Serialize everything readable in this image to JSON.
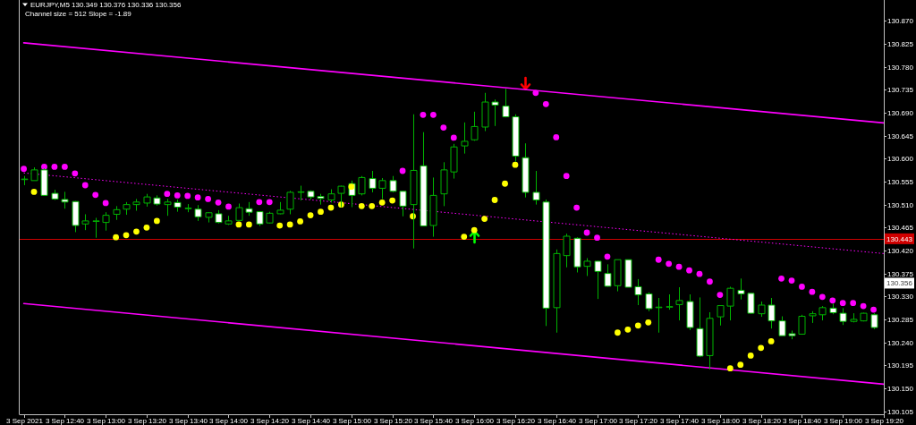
{
  "chart_data": {
    "type": "candlestick",
    "title": "EURJPY,M5 130.349 130.376 130.336 130.356",
    "subtitle": "Channel size = 512 Slope = -1.89",
    "x": [
      "2021-09-03T12:20",
      "2021-09-03T12:25",
      "2021-09-03T12:30",
      "2021-09-03T12:35",
      "2021-09-03T12:40",
      "2021-09-03T12:45",
      "2021-09-03T12:50",
      "2021-09-03T12:55",
      "2021-09-03T13:00",
      "2021-09-03T13:05",
      "2021-09-03T13:10",
      "2021-09-03T13:15",
      "2021-09-03T13:20",
      "2021-09-03T13:25",
      "2021-09-03T13:30",
      "2021-09-03T13:35",
      "2021-09-03T13:40",
      "2021-09-03T13:45",
      "2021-09-03T13:50",
      "2021-09-03T13:55",
      "2021-09-03T14:00",
      "2021-09-03T14:05",
      "2021-09-03T14:10",
      "2021-09-03T14:15",
      "2021-09-03T14:20",
      "2021-09-03T14:25",
      "2021-09-03T14:30",
      "2021-09-03T14:35",
      "2021-09-03T14:40",
      "2021-09-03T14:45",
      "2021-09-03T14:50",
      "2021-09-03T14:55",
      "2021-09-03T15:00",
      "2021-09-03T15:05",
      "2021-09-03T15:10",
      "2021-09-03T15:15",
      "2021-09-03T15:20",
      "2021-09-03T15:25",
      "2021-09-03T15:30",
      "2021-09-03T15:35",
      "2021-09-03T15:40",
      "2021-09-03T15:45",
      "2021-09-03T15:50",
      "2021-09-03T15:55",
      "2021-09-03T16:00",
      "2021-09-03T16:05",
      "2021-09-03T16:10",
      "2021-09-03T16:15",
      "2021-09-03T16:20",
      "2021-09-03T16:25",
      "2021-09-03T16:30",
      "2021-09-03T16:35",
      "2021-09-03T16:40",
      "2021-09-03T16:45",
      "2021-09-03T16:50",
      "2021-09-03T16:55",
      "2021-09-03T17:00",
      "2021-09-03T17:05",
      "2021-09-03T17:10",
      "2021-09-03T17:15",
      "2021-09-03T17:20",
      "2021-09-03T17:25",
      "2021-09-03T17:30",
      "2021-09-03T17:35",
      "2021-09-03T17:40",
      "2021-09-03T17:45",
      "2021-09-03T17:50",
      "2021-09-03T17:55",
      "2021-09-03T18:00",
      "2021-09-03T18:05",
      "2021-09-03T18:10",
      "2021-09-03T18:15",
      "2021-09-03T18:20",
      "2021-09-03T18:25",
      "2021-09-03T18:30",
      "2021-09-03T18:35",
      "2021-09-03T18:40",
      "2021-09-03T18:45",
      "2021-09-03T18:50",
      "2021-09-03T18:55",
      "2021-09-03T19:00",
      "2021-09-03T19:05",
      "2021-09-03T19:10",
      "2021-09-03T19:15"
    ],
    "ohlc": [
      [
        130.559,
        130.566,
        130.548,
        130.56
      ],
      [
        130.557,
        130.583,
        130.557,
        130.578
      ],
      [
        130.578,
        130.581,
        130.527,
        130.528
      ],
      [
        130.532,
        130.539,
        130.519,
        130.521
      ],
      [
        130.52,
        130.535,
        130.502,
        130.515
      ],
      [
        130.516,
        130.517,
        130.456,
        130.469
      ],
      [
        130.472,
        130.491,
        130.46,
        130.478
      ],
      [
        130.477,
        130.484,
        130.445,
        130.478
      ],
      [
        130.475,
        130.495,
        130.459,
        130.489
      ],
      [
        130.491,
        130.507,
        130.48,
        130.5
      ],
      [
        130.501,
        130.515,
        130.49,
        130.51
      ],
      [
        130.51,
        130.521,
        130.498,
        130.515
      ],
      [
        130.513,
        130.531,
        130.506,
        130.525
      ],
      [
        130.523,
        130.528,
        130.508,
        130.511
      ],
      [
        130.51,
        130.521,
        130.488,
        130.515
      ],
      [
        130.514,
        130.52,
        130.496,
        130.505
      ],
      [
        130.502,
        130.511,
        130.495,
        130.503
      ],
      [
        130.501,
        130.509,
        130.478,
        130.486
      ],
      [
        130.485,
        130.495,
        130.475,
        130.494
      ],
      [
        130.492,
        130.499,
        130.473,
        130.475
      ],
      [
        130.472,
        130.488,
        130.47,
        130.478
      ],
      [
        130.479,
        130.512,
        130.478,
        130.504
      ],
      [
        130.502,
        130.515,
        130.488,
        130.495
      ],
      [
        130.496,
        130.497,
        130.468,
        130.472
      ],
      [
        130.474,
        130.496,
        130.473,
        130.493
      ],
      [
        130.492,
        130.515,
        130.491,
        130.499
      ],
      [
        130.501,
        130.537,
        130.491,
        130.534
      ],
      [
        130.534,
        130.547,
        130.518,
        130.535
      ],
      [
        130.536,
        130.538,
        130.52,
        130.525
      ],
      [
        130.526,
        130.531,
        130.51,
        130.522
      ],
      [
        130.519,
        130.54,
        130.514,
        130.531
      ],
      [
        130.532,
        130.547,
        130.505,
        130.546
      ],
      [
        130.551,
        130.557,
        130.505,
        130.528
      ],
      [
        130.531,
        130.566,
        130.528,
        130.563
      ],
      [
        130.561,
        130.576,
        130.534,
        130.542
      ],
      [
        130.542,
        130.562,
        130.521,
        130.557
      ],
      [
        130.557,
        130.566,
        130.534,
        130.536
      ],
      [
        130.536,
        130.537,
        130.487,
        130.507
      ],
      [
        130.51,
        130.687,
        130.424,
        130.577
      ],
      [
        130.586,
        130.652,
        130.468,
        130.468
      ],
      [
        130.469,
        130.563,
        130.447,
        130.528
      ],
      [
        130.531,
        130.593,
        130.507,
        130.578
      ],
      [
        130.574,
        130.629,
        130.561,
        130.623
      ],
      [
        130.625,
        130.671,
        130.61,
        130.634
      ],
      [
        130.637,
        130.692,
        130.635,
        130.663
      ],
      [
        130.662,
        130.729,
        130.654,
        130.711
      ],
      [
        130.711,
        130.716,
        130.664,
        130.705
      ],
      [
        130.703,
        130.737,
        130.681,
        130.682
      ],
      [
        130.682,
        130.687,
        130.594,
        130.605
      ],
      [
        130.602,
        130.63,
        130.524,
        130.534
      ],
      [
        130.534,
        130.576,
        130.51,
        130.519
      ],
      [
        130.515,
        130.52,
        130.272,
        130.307
      ],
      [
        130.308,
        130.422,
        130.259,
        130.414
      ],
      [
        130.41,
        130.453,
        130.387,
        130.448
      ],
      [
        130.444,
        130.446,
        130.377,
        130.388
      ],
      [
        130.389,
        130.405,
        130.37,
        130.399
      ],
      [
        130.399,
        130.4,
        130.325,
        130.379
      ],
      [
        130.375,
        130.393,
        130.349,
        130.35
      ],
      [
        130.351,
        130.402,
        130.34,
        130.402
      ],
      [
        130.402,
        130.402,
        130.348,
        130.348
      ],
      [
        130.349,
        130.364,
        130.313,
        130.333
      ],
      [
        130.335,
        130.338,
        130.301,
        130.306
      ],
      [
        130.308,
        130.327,
        130.259,
        130.309
      ],
      [
        130.309,
        130.334,
        130.304,
        130.31
      ],
      [
        130.314,
        130.348,
        130.283,
        130.322
      ],
      [
        130.32,
        130.334,
        130.264,
        130.269
      ],
      [
        130.267,
        130.328,
        130.211,
        130.213
      ],
      [
        130.214,
        130.299,
        130.187,
        130.287
      ],
      [
        130.29,
        130.312,
        130.273,
        130.312
      ],
      [
        130.311,
        130.349,
        130.283,
        130.346
      ],
      [
        130.342,
        130.365,
        130.324,
        130.335
      ],
      [
        130.336,
        130.337,
        130.296,
        130.297
      ],
      [
        130.296,
        130.32,
        130.29,
        130.313
      ],
      [
        130.313,
        130.327,
        130.267,
        130.282
      ],
      [
        130.282,
        130.291,
        130.253,
        130.253
      ],
      [
        130.257,
        130.263,
        130.246,
        130.253
      ],
      [
        130.256,
        130.294,
        130.255,
        130.291
      ],
      [
        130.292,
        130.301,
        130.278,
        130.296
      ],
      [
        130.294,
        130.311,
        130.283,
        130.308
      ],
      [
        130.307,
        130.316,
        130.295,
        130.298
      ],
      [
        130.297,
        130.307,
        130.274,
        130.281
      ],
      [
        130.281,
        130.297,
        130.279,
        130.285
      ],
      [
        130.282,
        130.298,
        130.281,
        130.297
      ],
      [
        130.294,
        130.297,
        130.266,
        130.269
      ]
    ],
    "color": "#00b400",
    "colors": [
      "#000000",
      "#000000",
      "#ffffff",
      "#ffffff",
      "#ffffff",
      "#ffffff",
      "#000000",
      "#000000",
      "#000000",
      "#000000",
      "#000000",
      "#000000",
      "#000000",
      "#ffffff",
      "#000000",
      "#ffffff",
      "#000000",
      "#ffffff",
      "#000000",
      "#ffffff",
      "#000000",
      "#000000",
      "#ffffff",
      "#ffffff",
      "#000000",
      "#000000",
      "#000000",
      "#000000",
      "#ffffff",
      "#ffffff",
      "#000000",
      "#000000",
      "#ffffff",
      "#000000",
      "#ffffff",
      "#000000",
      "#ffffff",
      "#ffffff",
      "#000000",
      "#ffffff",
      "#000000",
      "#000000",
      "#000000",
      "#000000",
      "#000000",
      "#000000",
      "#ffffff",
      "#ffffff",
      "#ffffff",
      "#ffffff",
      "#ffffff",
      "#ffffff",
      "#000000",
      "#000000",
      "#ffffff",
      "#000000",
      "#ffffff",
      "#ffffff",
      "#000000",
      "#ffffff",
      "#ffffff",
      "#ffffff",
      "#000000",
      "#000000",
      "#000000",
      "#ffffff",
      "#ffffff",
      "#000000",
      "#000000",
      "#000000",
      "#ffffff",
      "#ffffff",
      "#000000",
      "#ffffff",
      "#ffffff",
      "#ffffff",
      "#000000",
      "#000000",
      "#000000",
      "#ffffff",
      "#ffffff",
      "#000000",
      "#000000",
      "#ffffff"
    ],
    "series": [
      {
        "type": "line",
        "color": "#ff00ff",
        "line_style": "solid",
        "x": [
          "2021-09-03T12:20",
          "2021-09-03T19:20"
        ],
        "values": [
          130.827,
          130.67
        ]
      },
      {
        "type": "line",
        "color": "#ff00ff",
        "line_style": "dotted",
        "x": [
          "2021-09-03T12:20",
          "2021-09-03T19:20"
        ],
        "values": [
          130.572,
          130.414
        ]
      },
      {
        "type": "line",
        "color": "#ff00ff",
        "line_style": "solid",
        "x": [
          "2021-09-03T12:20",
          "2021-09-03T19:20"
        ],
        "values": [
          130.316,
          130.158
        ]
      },
      {
        "type": "scatter",
        "color": "#ff00ff",
        "marker": "circle",
        "x": [
          "2021-09-03T12:20",
          "2021-09-03T12:30",
          "2021-09-03T12:35",
          "2021-09-03T12:40",
          "2021-09-03T12:45",
          "2021-09-03T12:50",
          "2021-09-03T12:55",
          "2021-09-03T13:00",
          "2021-09-03T13:30",
          "2021-09-03T13:35",
          "2021-09-03T13:40",
          "2021-09-03T13:45",
          "2021-09-03T13:50",
          "2021-09-03T13:55",
          "2021-09-03T14:00",
          "2021-09-03T14:15",
          "2021-09-03T14:20",
          "2021-09-03T15:25",
          "2021-09-03T15:35",
          "2021-09-03T15:40",
          "2021-09-03T15:45",
          "2021-09-03T15:50",
          "2021-09-03T16:30",
          "2021-09-03T16:35",
          "2021-09-03T16:40",
          "2021-09-03T16:45",
          "2021-09-03T16:50",
          "2021-09-03T16:55",
          "2021-09-03T17:00",
          "2021-09-03T17:05",
          "2021-09-03T17:30",
          "2021-09-03T17:35",
          "2021-09-03T17:40",
          "2021-09-03T17:45",
          "2021-09-03T17:50",
          "2021-09-03T17:55",
          "2021-09-03T18:00",
          "2021-09-03T18:30",
          "2021-09-03T18:35",
          "2021-09-03T18:40",
          "2021-09-03T18:45",
          "2021-09-03T18:50",
          "2021-09-03T18:55",
          "2021-09-03T19:00",
          "2021-09-03T19:05",
          "2021-09-03T19:10",
          "2021-09-03T19:15"
        ],
        "values": [
          130.58,
          130.584,
          130.584,
          130.584,
          130.571,
          130.548,
          130.529,
          130.513,
          130.531,
          130.528,
          130.527,
          130.524,
          130.521,
          130.514,
          130.506,
          130.515,
          130.515,
          130.576,
          130.686,
          130.686,
          130.661,
          130.641,
          130.729,
          130.707,
          130.642,
          130.566,
          130.504,
          130.455,
          130.445,
          130.408,
          130.402,
          130.394,
          130.388,
          130.381,
          130.374,
          130.359,
          130.333,
          130.365,
          130.361,
          130.349,
          130.339,
          130.329,
          130.322,
          130.317,
          130.317,
          130.311,
          130.304
        ]
      },
      {
        "type": "scatter",
        "color": "#ffff00",
        "marker": "circle",
        "x": [
          "2021-09-03T12:25",
          "2021-09-03T13:05",
          "2021-09-03T13:10",
          "2021-09-03T13:15",
          "2021-09-03T13:20",
          "2021-09-03T13:25",
          "2021-09-03T14:05",
          "2021-09-03T14:10",
          "2021-09-03T14:25",
          "2021-09-03T14:30",
          "2021-09-03T14:35",
          "2021-09-03T14:40",
          "2021-09-03T14:45",
          "2021-09-03T14:50",
          "2021-09-03T14:55",
          "2021-09-03T15:00",
          "2021-09-03T15:05",
          "2021-09-03T15:10",
          "2021-09-03T15:15",
          "2021-09-03T15:20",
          "2021-09-03T15:30",
          "2021-09-03T15:55",
          "2021-09-03T16:00",
          "2021-09-03T16:05",
          "2021-09-03T16:10",
          "2021-09-03T16:15",
          "2021-09-03T16:20",
          "2021-09-03T17:10",
          "2021-09-03T17:15",
          "2021-09-03T17:20",
          "2021-09-03T17:25",
          "2021-09-03T18:05",
          "2021-09-03T18:10",
          "2021-09-03T18:15",
          "2021-09-03T18:20",
          "2021-09-03T18:25"
        ],
        "values": [
          130.535,
          130.446,
          130.45,
          130.457,
          130.465,
          130.478,
          130.471,
          130.471,
          130.469,
          130.471,
          130.477,
          130.489,
          130.496,
          130.504,
          130.51,
          130.545,
          130.507,
          130.507,
          130.514,
          130.518,
          130.487,
          130.447,
          130.46,
          130.482,
          130.519,
          130.551,
          130.588,
          130.259,
          130.265,
          130.273,
          130.279,
          130.189,
          130.196,
          130.214,
          130.229,
          130.242
        ]
      }
    ],
    "ref_lines": [
      {
        "axis": "y",
        "value": 130.443,
        "label": "130.443",
        "color": "#d00000"
      }
    ],
    "annotations": [
      {
        "text": "130.356",
        "y": 130.356
      }
    ],
    "xlim": [
      "2021-09-03T12:18",
      "2021-09-03T19:20"
    ],
    "xticks": [
      {
        "value": "2021-09-03T12:20",
        "label": "3 Sep 2021"
      },
      {
        "value": "2021-09-03T12:40",
        "label": "3 Sep 12:40"
      },
      {
        "value": "2021-09-03T13:00",
        "label": "3 Sep 13:00"
      },
      {
        "value": "2021-09-03T13:20",
        "label": "3 Sep 13:20"
      },
      {
        "value": "2021-09-03T13:40",
        "label": "3 Sep 13:40"
      },
      {
        "value": "2021-09-03T14:00",
        "label": "3 Sep 14:00"
      },
      {
        "value": "2021-09-03T14:20",
        "label": "3 Sep 14:20"
      },
      {
        "value": "2021-09-03T14:40",
        "label": "3 Sep 14:40"
      },
      {
        "value": "2021-09-03T15:00",
        "label": "3 Sep 15:00"
      },
      {
        "value": "2021-09-03T15:20",
        "label": "3 Sep 15:20"
      },
      {
        "value": "2021-09-03T15:40",
        "label": "3 Sep 15:40"
      },
      {
        "value": "2021-09-03T16:00",
        "label": "3 Sep 16:00"
      },
      {
        "value": "2021-09-03T16:20",
        "label": "3 Sep 16:20"
      },
      {
        "value": "2021-09-03T16:40",
        "label": "3 Sep 16:40"
      },
      {
        "value": "2021-09-03T17:00",
        "label": "3 Sep 17:00"
      },
      {
        "value": "2021-09-03T17:20",
        "label": "3 Sep 17:20"
      },
      {
        "value": "2021-09-03T17:40",
        "label": "3 Sep 17:40"
      },
      {
        "value": "2021-09-03T18:00",
        "label": "3 Sep 18:00"
      },
      {
        "value": "2021-09-03T18:20",
        "label": "3 Sep 18:20"
      },
      {
        "value": "2021-09-03T18:40",
        "label": "3 Sep 18:40"
      },
      {
        "value": "2021-09-03T19:00",
        "label": "3 Sep 19:00"
      },
      {
        "value": "2021-09-03T19:20",
        "label": "3 Sep 19:20"
      }
    ],
    "ylim": [
      130.099,
      130.911
    ],
    "yticks": [
      {
        "value": 130.105,
        "label": "130.105"
      },
      {
        "value": 130.15,
        "label": "130.150"
      },
      {
        "value": 130.195,
        "label": "130.195"
      },
      {
        "value": 130.24,
        "label": "130.240"
      },
      {
        "value": 130.285,
        "label": "130.285"
      },
      {
        "value": 130.33,
        "label": "130.330"
      },
      {
        "value": 130.375,
        "label": "130.375"
      },
      {
        "value": 130.42,
        "label": "130.420"
      },
      {
        "value": 130.465,
        "label": "130.465"
      },
      {
        "value": 130.51,
        "label": "130.510"
      },
      {
        "value": 130.555,
        "label": "130.555"
      },
      {
        "value": 130.6,
        "label": "130.600"
      },
      {
        "value": 130.645,
        "label": "130.645"
      },
      {
        "value": 130.69,
        "label": "130.690"
      },
      {
        "value": 130.735,
        "label": "130.735"
      },
      {
        "value": 130.78,
        "label": "130.780"
      },
      {
        "value": 130.825,
        "label": "130.825"
      },
      {
        "value": 130.87,
        "label": "130.870"
      }
    ]
  }
}
